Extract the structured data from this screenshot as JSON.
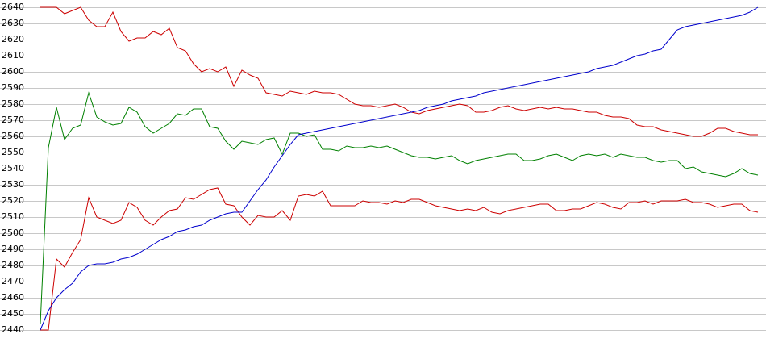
{
  "chart_data": {
    "type": "line",
    "ylim": [
      2440,
      2640
    ],
    "yticks": [
      2440,
      2450,
      2460,
      2470,
      2480,
      2490,
      2500,
      2510,
      2520,
      2530,
      2540,
      2550,
      2560,
      2570,
      2580,
      2590,
      2600,
      2610,
      2620,
      2630,
      2640
    ],
    "grid": true,
    "series": [
      {
        "color": "#cc0000",
        "values": [
          2640,
          2640,
          2640,
          2636,
          2638,
          2640,
          2632,
          2628,
          2628,
          2637,
          2625,
          2619,
          2621,
          2621,
          2625,
          2623,
          2627,
          2615,
          2613,
          2605,
          2600,
          2602,
          2600,
          2603,
          2591,
          2601,
          2598,
          2596,
          2587,
          2586,
          2585,
          2588,
          2587,
          2586,
          2588,
          2587,
          2587,
          2586,
          2583,
          2580,
          2579,
          2579,
          2578,
          2579,
          2580,
          2578,
          2575,
          2574,
          2576,
          2577,
          2578,
          2579,
          2580,
          2579,
          2575,
          2575,
          2576,
          2578,
          2579,
          2577,
          2576,
          2577,
          2578,
          2577,
          2578,
          2577,
          2577,
          2576,
          2575,
          2575,
          2573,
          2572,
          2572,
          2571,
          2567,
          2566,
          2566,
          2564,
          2563,
          2562,
          2561,
          2560,
          2560,
          2562,
          2565,
          2565,
          2563,
          2562,
          2561,
          2561
        ]
      },
      {
        "color": "#008000",
        "values": [
          2444,
          2553,
          2578,
          2558,
          2565,
          2567,
          2587,
          2572,
          2569,
          2567,
          2568,
          2578,
          2575,
          2566,
          2562,
          2565,
          2568,
          2574,
          2573,
          2577,
          2577,
          2566,
          2565,
          2557,
          2552,
          2557,
          2556,
          2555,
          2558,
          2559,
          2549,
          2562,
          2562,
          2560,
          2561,
          2552,
          2552,
          2551,
          2554,
          2553,
          2553,
          2554,
          2553,
          2554,
          2552,
          2550,
          2548,
          2547,
          2547,
          2546,
          2547,
          2548,
          2545,
          2543,
          2545,
          2546,
          2547,
          2548,
          2549,
          2549,
          2545,
          2545,
          2546,
          2548,
          2549,
          2547,
          2545,
          2548,
          2549,
          2548,
          2549,
          2547,
          2549,
          2548,
          2547,
          2547,
          2545,
          2544,
          2545,
          2545,
          2540,
          2541,
          2538,
          2537,
          2536,
          2535,
          2537,
          2540,
          2537,
          2536
        ]
      },
      {
        "color": "#cc0000",
        "values": [
          2440,
          2440,
          2484,
          2479,
          2488,
          2496,
          2522,
          2510,
          2508,
          2506,
          2508,
          2519,
          2516,
          2508,
          2505,
          2510,
          2514,
          2515,
          2522,
          2521,
          2524,
          2527,
          2528,
          2518,
          2517,
          2510,
          2505,
          2511,
          2510,
          2510,
          2514,
          2508,
          2523,
          2524,
          2523,
          2526,
          2517,
          2517,
          2517,
          2517,
          2520,
          2519,
          2519,
          2518,
          2520,
          2519,
          2521,
          2521,
          2519,
          2517,
          2516,
          2515,
          2514,
          2515,
          2514,
          2516,
          2513,
          2512,
          2514,
          2515,
          2516,
          2517,
          2518,
          2518,
          2514,
          2514,
          2515,
          2515,
          2517,
          2519,
          2518,
          2516,
          2515,
          2519,
          2519,
          2520,
          2518,
          2520,
          2520,
          2520,
          2521,
          2519,
          2519,
          2518,
          2516,
          2517,
          2518,
          2518,
          2514,
          2513
        ]
      },
      {
        "color": "#0000cc",
        "values": [
          2440,
          2452,
          2460,
          2465,
          2469,
          2476,
          2480,
          2481,
          2481,
          2482,
          2484,
          2485,
          2487,
          2490,
          2493,
          2496,
          2498,
          2501,
          2502,
          2504,
          2505,
          2508,
          2510,
          2512,
          2513,
          2513,
          2520,
          2527,
          2533,
          2541,
          2548,
          2555,
          2561,
          2562,
          2563,
          2564,
          2565,
          2566,
          2567,
          2568,
          2569,
          2570,
          2571,
          2572,
          2573,
          2574,
          2575,
          2576,
          2578,
          2579,
          2580,
          2582,
          2583,
          2584,
          2585,
          2587,
          2588,
          2589,
          2590,
          2591,
          2592,
          2593,
          2594,
          2595,
          2596,
          2597,
          2598,
          2599,
          2600,
          2602,
          2603,
          2604,
          2606,
          2608,
          2610,
          2611,
          2613,
          2614,
          2620,
          2626,
          2628,
          2629,
          2630,
          2631,
          2632,
          2633,
          2634,
          2635,
          2637,
          2640
        ]
      }
    ]
  }
}
